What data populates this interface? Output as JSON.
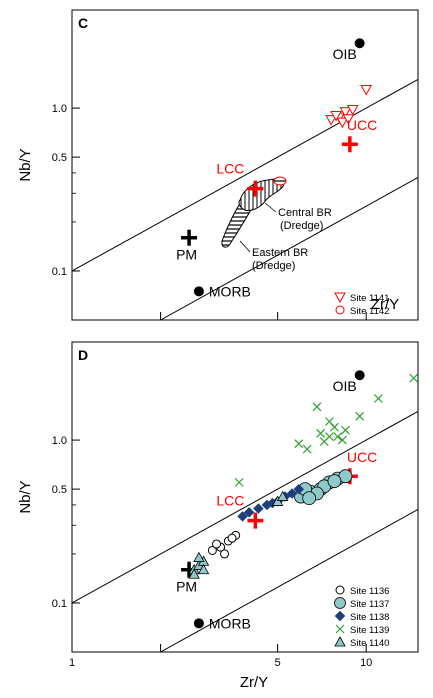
{
  "figure": {
    "xlabel_bottom": "Zr/Y"
  },
  "colors": {
    "accent": "#ff0000",
    "black": "#000000",
    "green": "#2ca02c",
    "teal": "#8fc9c9",
    "navy": "#1f3f7a"
  },
  "chart_data": [
    {
      "type": "scatter",
      "panel_label": "C",
      "xlabel": "Zr/Y",
      "ylabel": "Nb/Y",
      "xscale": "log",
      "yscale": "log",
      "xlim": [
        1,
        15
      ],
      "ylim": [
        0.05,
        4
      ],
      "yticks": [
        {
          "v": 0.1,
          "label": "0.1"
        },
        {
          "v": 0.5,
          "label": "0.5"
        },
        {
          "v": 1.0,
          "label": "1.0"
        }
      ],
      "legend_position": "bottom-right",
      "reference_points": [
        {
          "name": "OIB",
          "x": 9.5,
          "y": 2.5,
          "marker": "dot",
          "label_dx": -27,
          "label_dy": 16
        },
        {
          "name": "MORB",
          "x": 2.7,
          "y": 0.075,
          "marker": "dot",
          "label_dx": 10,
          "label_dy": 5
        },
        {
          "name": "PM",
          "x": 2.5,
          "y": 0.16,
          "marker": "plus-black",
          "label_dx": -13,
          "label_dy": 22
        },
        {
          "name": "UCC",
          "x": 8.8,
          "y": 0.6,
          "marker": "plus-red",
          "label_dx": -3,
          "label_dy": -14
        },
        {
          "name": "LCC",
          "x": 4.2,
          "y": 0.32,
          "marker": "plus-red",
          "label_dx": -39,
          "label_dy": -15
        }
      ],
      "lines": [
        {
          "x1": 1,
          "y1": 0.1,
          "x2": 15,
          "y2": 1.5
        },
        {
          "x1": 2.0,
          "y1": 0.05,
          "x2": 15,
          "y2": 0.375
        }
      ],
      "fields": [
        {
          "name": "Central BR (Dredge)",
          "line1": "Central BR",
          "line2": "(Dredge)",
          "pattern": "vertical"
        },
        {
          "name": "Eastern BR (Dredge)",
          "line1": "Eastern BR",
          "line2": "(Dredge)",
          "pattern": "horizontal"
        }
      ],
      "series": [
        {
          "name": "Site 1141",
          "marker": "triangle-down-open",
          "color": "#ff0000",
          "x": [
            7.6,
            8.1,
            8.5,
            9.0,
            8.3,
            10.0,
            7.9,
            8.7
          ],
          "y": [
            0.85,
            0.88,
            0.95,
            0.98,
            0.82,
            1.3,
            0.9,
            0.86
          ]
        },
        {
          "name": "Site 1142",
          "marker": "circle-open",
          "color": "#ff0000",
          "x": [],
          "y": []
        }
      ]
    },
    {
      "type": "scatter",
      "panel_label": "D",
      "xlabel": "Zr/Y",
      "ylabel": "Nb/Y",
      "xscale": "log",
      "yscale": "log",
      "xlim": [
        1,
        15
      ],
      "ylim": [
        0.05,
        4
      ],
      "xticks": [
        {
          "v": 1,
          "label": "1"
        },
        {
          "v": 5,
          "label": "5"
        },
        {
          "v": 10,
          "label": "10"
        }
      ],
      "yticks": [
        {
          "v": 0.1,
          "label": "0.1"
        },
        {
          "v": 0.5,
          "label": "0.5"
        },
        {
          "v": 1.0,
          "label": "1.0"
        }
      ],
      "legend_position": "bottom-right",
      "reference_points": [
        {
          "name": "OIB",
          "x": 9.5,
          "y": 2.5,
          "marker": "dot",
          "label_dx": -27,
          "label_dy": 16
        },
        {
          "name": "MORB",
          "x": 2.7,
          "y": 0.075,
          "marker": "dot",
          "label_dx": 10,
          "label_dy": 5
        },
        {
          "name": "PM",
          "x": 2.5,
          "y": 0.16,
          "marker": "plus-black",
          "label_dx": -13,
          "label_dy": 22
        },
        {
          "name": "UCC",
          "x": 8.8,
          "y": 0.6,
          "marker": "plus-red",
          "label_dx": -3,
          "label_dy": -14
        },
        {
          "name": "LCC",
          "x": 4.2,
          "y": 0.32,
          "marker": "plus-red",
          "label_dx": -39,
          "label_dy": -15
        }
      ],
      "lines": [
        {
          "x1": 1,
          "y1": 0.1,
          "x2": 15,
          "y2": 1.5
        },
        {
          "x1": 2.0,
          "y1": 0.05,
          "x2": 15,
          "y2": 0.375
        }
      ],
      "series": [
        {
          "name": "Site 1136",
          "marker": "circle-open",
          "color": "#000000",
          "x": [
            3.0,
            3.2,
            3.4,
            3.6,
            3.3,
            3.1,
            3.5
          ],
          "y": [
            0.21,
            0.22,
            0.24,
            0.26,
            0.2,
            0.23,
            0.25
          ]
        },
        {
          "name": "Site 1137",
          "marker": "circle-filled",
          "color": "#8fc9c9",
          "x": [
            6.0,
            6.5,
            7.0,
            7.5,
            8.0,
            8.5,
            7.2,
            6.8,
            6.2,
            7.8,
            6.4
          ],
          "y": [
            0.45,
            0.48,
            0.5,
            0.55,
            0.58,
            0.6,
            0.52,
            0.47,
            0.5,
            0.56,
            0.44
          ]
        },
        {
          "name": "Site 1138",
          "marker": "diamond-filled",
          "color": "#1f3f7a",
          "x": [
            3.8,
            4.0,
            4.3,
            4.6,
            4.8,
            5.0,
            5.3,
            5.6,
            5.9
          ],
          "y": [
            0.34,
            0.36,
            0.38,
            0.4,
            0.41,
            0.42,
            0.45,
            0.47,
            0.5
          ]
        },
        {
          "name": "Site 1139",
          "marker": "x",
          "color": "#2ca02c",
          "x": [
            3.7,
            5.9,
            6.3,
            7.0,
            7.5,
            8.0,
            8.3,
            7.8,
            6.8,
            7.2,
            8.5,
            9.5,
            11.0,
            7.5,
            14.5
          ],
          "y": [
            0.55,
            0.95,
            0.88,
            1.1,
            1.3,
            1.05,
            1.0,
            1.2,
            1.6,
            0.98,
            1.15,
            1.4,
            1.8,
            1.05,
            2.4
          ]
        },
        {
          "name": "Site 1140",
          "marker": "triangle-up-filled",
          "color": "#8fc9c9",
          "x": [
            2.6,
            2.7,
            2.8,
            2.7,
            2.6,
            2.8,
            5.0,
            5.2
          ],
          "y": [
            0.16,
            0.17,
            0.18,
            0.19,
            0.15,
            0.16,
            0.42,
            0.45
          ]
        }
      ]
    }
  ]
}
